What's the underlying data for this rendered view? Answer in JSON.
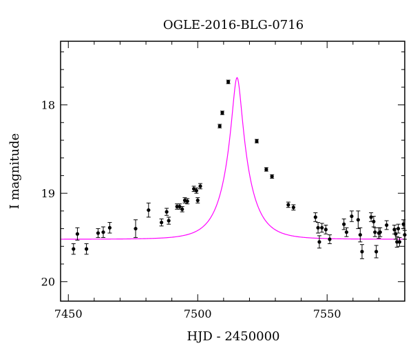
{
  "chart_data": {
    "type": "scatter",
    "title": "OGLE-2016-BLG-0716",
    "xlabel": "HJD - 2450000",
    "ylabel": "I magnitude",
    "xlim": [
      7447,
      7580
    ],
    "ylim": [
      20.22,
      17.28
    ],
    "y_inverted": true,
    "xticks_major": [
      7450,
      7500,
      7550
    ],
    "xtick_labels": [
      "7450",
      "7500",
      "7550"
    ],
    "yticks_major": [
      18,
      19,
      20
    ],
    "ytick_labels": [
      "18",
      "19",
      "20"
    ],
    "grid": false,
    "colors": {
      "model": "#ff00ff",
      "points": "#000000"
    },
    "model": {
      "type": "paczynski",
      "t0": 7515.2,
      "tE": 9.0,
      "u0": 0.188,
      "baseline_mag": 19.52
    },
    "series": [
      {
        "points": [
          [
            7452,
            19.63,
            0.06
          ],
          [
            7453.5,
            19.46,
            0.07
          ],
          [
            7457,
            19.63,
            0.06
          ],
          [
            7461.5,
            19.45,
            0.05
          ],
          [
            7463.5,
            19.44,
            0.06
          ],
          [
            7466,
            19.39,
            0.06
          ],
          [
            7476,
            19.4,
            0.1
          ],
          [
            7481,
            19.19,
            0.08
          ],
          [
            7486,
            19.33,
            0.04
          ],
          [
            7488,
            19.21,
            0.04
          ],
          [
            7488.8,
            19.31,
            0.04
          ],
          [
            7492,
            19.15,
            0.03
          ],
          [
            7493,
            19.15,
            0.03
          ],
          [
            7494,
            19.18,
            0.03
          ],
          [
            7495,
            19.08,
            0.03
          ],
          [
            7496,
            19.09,
            0.03
          ],
          [
            7498.5,
            18.95,
            0.03
          ],
          [
            7499.5,
            18.97,
            0.03
          ],
          [
            7500,
            19.08,
            0.03
          ],
          [
            7501,
            18.92,
            0.03
          ],
          [
            7508.5,
            18.24,
            0.02
          ],
          [
            7509.5,
            18.09,
            0.02
          ],
          [
            7511.8,
            17.74,
            0.02
          ],
          [
            7522.8,
            18.41,
            0.02
          ],
          [
            7526.5,
            18.73,
            0.02
          ],
          [
            7528.7,
            18.81,
            0.02
          ],
          [
            7535,
            19.13,
            0.03
          ],
          [
            7537,
            19.16,
            0.03
          ],
          [
            7545.5,
            19.27,
            0.05
          ],
          [
            7546.5,
            19.39,
            0.06
          ],
          [
            7547,
            19.55,
            0.07
          ],
          [
            7548,
            19.39,
            0.05
          ],
          [
            7549.5,
            19.41,
            0.05
          ],
          [
            7551,
            19.52,
            0.05
          ],
          [
            7556.5,
            19.35,
            0.06
          ],
          [
            7557.5,
            19.44,
            0.05
          ],
          [
            7559.5,
            19.26,
            0.06
          ],
          [
            7562,
            19.3,
            0.1
          ],
          [
            7562.8,
            19.47,
            0.08
          ],
          [
            7563.5,
            19.66,
            0.08
          ],
          [
            7567,
            19.27,
            0.05
          ],
          [
            7568,
            19.32,
            0.06
          ],
          [
            7568.5,
            19.44,
            0.05
          ],
          [
            7569,
            19.66,
            0.07
          ],
          [
            7570,
            19.45,
            0.06
          ],
          [
            7570.5,
            19.44,
            0.05
          ],
          [
            7573,
            19.36,
            0.05
          ],
          [
            7576,
            19.41,
            0.05
          ],
          [
            7576.5,
            19.46,
            0.06
          ],
          [
            7577,
            19.55,
            0.06
          ],
          [
            7577.5,
            19.4,
            0.05
          ],
          [
            7578,
            19.55,
            0.05
          ],
          [
            7579.5,
            19.35,
            0.05
          ],
          [
            7580,
            19.47,
            0.05
          ]
        ]
      }
    ]
  }
}
